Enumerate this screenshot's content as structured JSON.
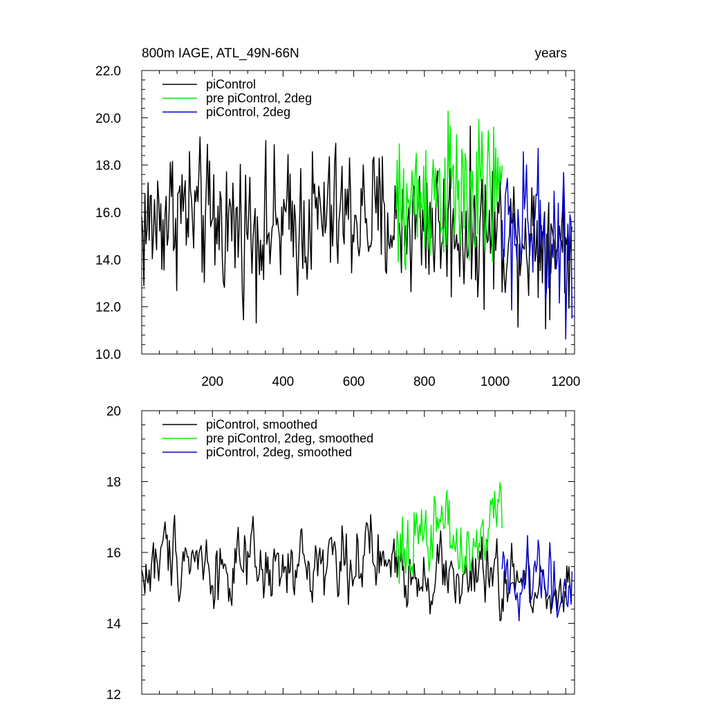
{
  "chart_data": [
    {
      "type": "line",
      "title": "800m IAGE, ATL_49N-66N",
      "right_title": "years",
      "xlim": [
        0,
        1225
      ],
      "ylim": [
        10,
        22
      ],
      "x_ticks": [
        200,
        400,
        600,
        800,
        1000,
        1200
      ],
      "y_ticks": [
        10,
        12,
        14,
        16,
        18,
        20,
        22
      ],
      "y_tick_labels": [
        "10.0",
        "12.0",
        "14.0",
        "16.0",
        "18.0",
        "20.0",
        "22.0"
      ],
      "grid": false,
      "legend_position": "top-left",
      "series": [
        {
          "name": "piControl",
          "color": "#000000",
          "x": [
            0,
            100,
            200,
            300,
            400,
            500,
            600,
            700,
            800,
            900,
            1000,
            1100,
            1220
          ],
          "values": [
            15.3,
            16.2,
            15.6,
            15.4,
            15.3,
            15.8,
            15.9,
            15.6,
            15.6,
            15.3,
            15.2,
            15.1,
            15.0
          ],
          "amplitude": 1.5
        },
        {
          "name": "pre piControl, 2deg",
          "color": "#00ee00",
          "x": [
            720,
            750,
            800,
            850,
            900,
            950,
            1000,
            1020
          ],
          "values": [
            15.7,
            16.3,
            16.8,
            17.0,
            16.6,
            16.4,
            16.9,
            16.5
          ],
          "amplitude": 1.6
        },
        {
          "name": "piControl, 2deg",
          "color": "#0000cc",
          "x": [
            1020,
            1060,
            1100,
            1140,
            1180,
            1220
          ],
          "values": [
            15.4,
            15.2,
            15.4,
            15.0,
            14.9,
            14.6
          ],
          "amplitude": 1.6
        }
      ]
    },
    {
      "type": "line",
      "title": "",
      "xlim": [
        0,
        1225
      ],
      "ylim": [
        12,
        20
      ],
      "x_ticks": [
        200,
        400,
        600,
        800,
        1000,
        1200
      ],
      "y_ticks": [
        12,
        14,
        16,
        18,
        20
      ],
      "y_tick_labels": [
        "12",
        "14",
        "16",
        "18",
        "20"
      ],
      "grid": false,
      "legend_position": "top-left",
      "series": [
        {
          "name": "piControl, smoothed",
          "color": "#000000",
          "x": [
            0,
            100,
            200,
            300,
            400,
            500,
            600,
            700,
            800,
            900,
            1000,
            1100,
            1220
          ],
          "values": [
            15.3,
            16.2,
            15.6,
            15.4,
            15.3,
            15.8,
            15.9,
            15.6,
            15.6,
            15.3,
            15.2,
            15.1,
            15.0
          ],
          "amplitude": 1.0
        },
        {
          "name": "pre piControl, 2deg, smoothed",
          "color": "#00ee00",
          "x": [
            720,
            750,
            800,
            850,
            900,
            950,
            1000,
            1020
          ],
          "values": [
            15.7,
            16.3,
            16.8,
            17.0,
            16.6,
            16.4,
            16.9,
            16.5
          ],
          "amplitude": 1.1
        },
        {
          "name": "piControl, 2deg, smoothed",
          "color": "#0000cc",
          "x": [
            1020,
            1060,
            1100,
            1140,
            1180,
            1220
          ],
          "values": [
            15.4,
            15.2,
            15.4,
            15.0,
            14.9,
            14.6
          ],
          "amplitude": 1.1
        }
      ]
    }
  ]
}
